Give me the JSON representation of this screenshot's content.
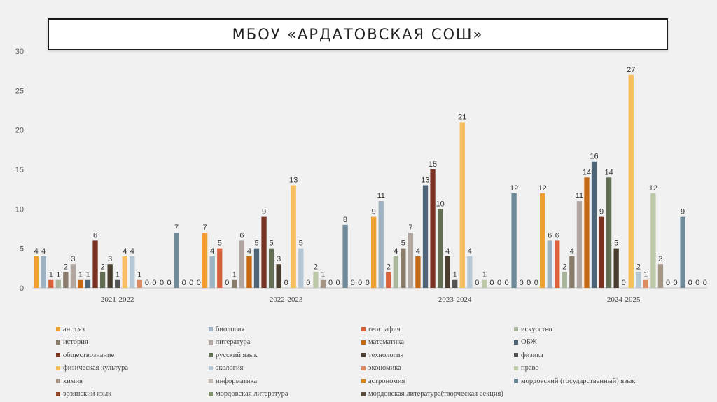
{
  "slide": {
    "title": "МБОУ «АРДАТОВСКАЯ СОШ»"
  },
  "chart_data": {
    "type": "bar",
    "title": "МБОУ «АРДАТОВСКАЯ СОШ»",
    "xlabel": "",
    "ylabel": "",
    "ylim": [
      0,
      30
    ],
    "yticks": [
      "0",
      "5",
      "10",
      "15",
      "20",
      "25",
      "30"
    ],
    "grid": false,
    "legend_position": "bottom",
    "categories": [
      "2021-2022",
      "2022-2023",
      "2023-2024",
      "2024-2025"
    ],
    "series": [
      {
        "name": "англ.яз",
        "color": "#f0a030",
        "values": [
          4,
          7,
          9,
          12
        ]
      },
      {
        "name": "биология",
        "color": "#9fb2c4",
        "values": [
          4,
          4,
          11,
          6
        ]
      },
      {
        "name": "география",
        "color": "#d9623a",
        "values": [
          1,
          5,
          2,
          6
        ]
      },
      {
        "name": "искусство",
        "color": "#a9b59a",
        "values": [
          1,
          0,
          4,
          2
        ]
      },
      {
        "name": "история",
        "color": "#8a7c6a",
        "values": [
          2,
          1,
          5,
          4
        ]
      },
      {
        "name": "литература",
        "color": "#b2a6a0",
        "values": [
          3,
          6,
          7,
          11
        ]
      },
      {
        "name": "математика",
        "color": "#c46a16",
        "values": [
          1,
          4,
          4,
          14
        ]
      },
      {
        "name": "ОБЖ",
        "color": "#4e6577",
        "values": [
          1,
          5,
          13,
          16
        ]
      },
      {
        "name": "обществознание",
        "color": "#7a3322",
        "values": [
          6,
          9,
          15,
          9
        ]
      },
      {
        "name": "русский язык",
        "color": "#626f55",
        "values": [
          2,
          5,
          10,
          14
        ]
      },
      {
        "name": "технология",
        "color": "#4a3e30",
        "values": [
          3,
          3,
          4,
          5
        ]
      },
      {
        "name": "физика",
        "color": "#535353",
        "values": [
          1,
          0,
          1,
          0
        ]
      },
      {
        "name": "физическая культура",
        "color": "#f6bf5c",
        "values": [
          4,
          13,
          21,
          27
        ]
      },
      {
        "name": "экология",
        "color": "#b6c8d6",
        "values": [
          4,
          5,
          4,
          2
        ]
      },
      {
        "name": "экономика",
        "color": "#e08a62",
        "values": [
          1,
          0,
          0,
          1
        ]
      },
      {
        "name": "право",
        "color": "#bccaa8",
        "values": [
          0,
          2,
          1,
          12
        ]
      },
      {
        "name": "химия",
        "color": "#a49584",
        "values": [
          0,
          1,
          0,
          3
        ]
      },
      {
        "name": "информатика",
        "color": "#c3bdb3",
        "values": [
          0,
          0,
          0,
          0
        ]
      },
      {
        "name": "астрономия",
        "color": "#d9861f",
        "values": [
          0,
          0,
          0,
          0
        ]
      },
      {
        "name": "мордовский (государственный) язык",
        "color": "#6f8b99",
        "values": [
          7,
          8,
          12,
          9
        ]
      },
      {
        "name": "эрзянский язык",
        "color": "#8a4326",
        "values": [
          0,
          0,
          0,
          0
        ]
      },
      {
        "name": "мордовская литература",
        "color": "#7f8f6a",
        "values": [
          0,
          0,
          0,
          0
        ]
      },
      {
        "name": "мордовская литература(творческая секция)",
        "color": "#5e5040",
        "values": [
          0,
          0,
          0,
          0
        ]
      }
    ]
  }
}
